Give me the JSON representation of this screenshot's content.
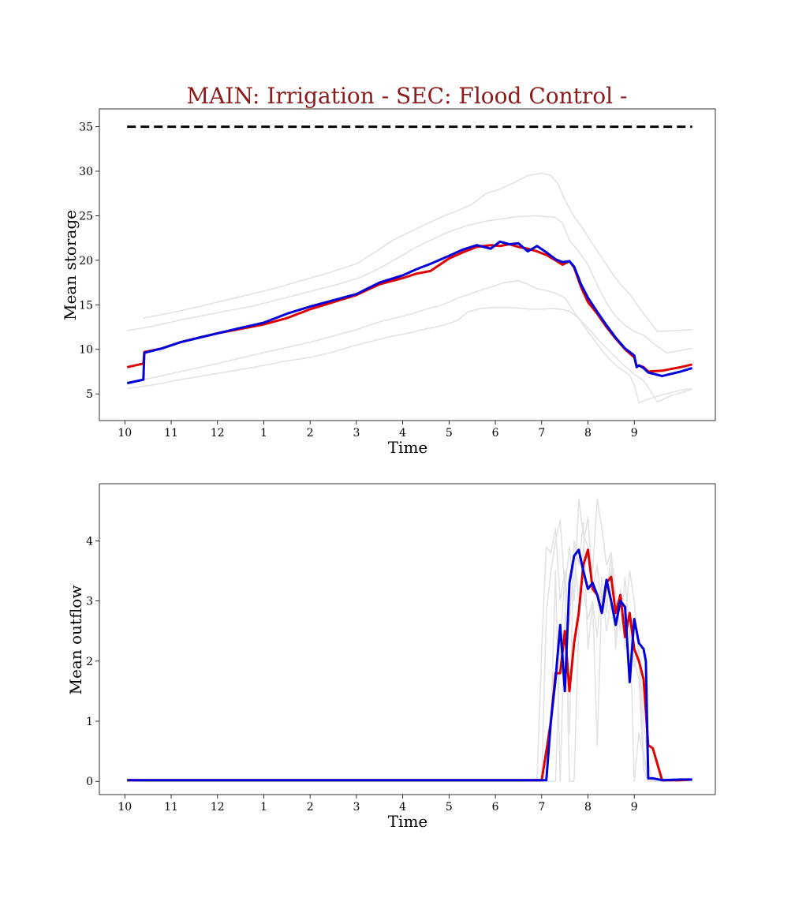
{
  "title": "MAIN: Irrigation - SEC: Flood Control -",
  "colors": {
    "title": "#8b1a1a",
    "policy_a": "#e00000",
    "policy_b": "#0000dd",
    "background_runs": "#e3e3e3",
    "capacity": "#000000"
  },
  "chart_data": [
    {
      "type": "line",
      "xlabel": "Time",
      "ylabel": "Mean storage",
      "x_ticks": [
        {
          "t": 0,
          "label": "10"
        },
        {
          "t": 1,
          "label": "11"
        },
        {
          "t": 2,
          "label": "12"
        },
        {
          "t": 3,
          "label": "1"
        },
        {
          "t": 4,
          "label": "2"
        },
        {
          "t": 5,
          "label": "3"
        },
        {
          "t": 6,
          "label": "4"
        },
        {
          "t": 7,
          "label": "5"
        },
        {
          "t": 8,
          "label": "6"
        },
        {
          "t": 9,
          "label": "7"
        },
        {
          "t": 10,
          "label": "8"
        },
        {
          "t": 11,
          "label": "9"
        }
      ],
      "xlim": [
        -0.55,
        12.75
      ],
      "ylim": [
        2,
        37
      ],
      "y_ticks": [
        5,
        10,
        15,
        20,
        25,
        30,
        35
      ],
      "grid": false,
      "capacity_line": {
        "y": 35,
        "x": [
          0.05,
          12.25
        ],
        "style": "dashed"
      },
      "background_series": [
        {
          "x": [
            0.05,
            0.6,
            1.2,
            2.0,
            2.8,
            3.4,
            4.0,
            4.6,
            5.1,
            5.5,
            5.9,
            6.3,
            6.7,
            7.0,
            7.4,
            7.8,
            8.2,
            8.5,
            8.9,
            9.1,
            9.3,
            9.45,
            9.6,
            9.8,
            10.0,
            10.2,
            10.4,
            10.6,
            10.8,
            11.0,
            11.2,
            11.4,
            11.7,
            12.25
          ],
          "y": [
            12.1,
            12.6,
            13.3,
            14.1,
            14.9,
            15.7,
            16.5,
            17.3,
            18.1,
            19.1,
            20.3,
            21.5,
            22.5,
            23.2,
            23.9,
            24.4,
            24.7,
            24.9,
            25.0,
            24.9,
            24.8,
            24.2,
            22.2,
            21.0,
            19.5,
            17.2,
            15.2,
            13.7,
            12.7,
            12.0,
            11.6,
            10.7,
            9.6,
            10.1
          ]
        },
        {
          "x": [
            0.4,
            1.0,
            1.6,
            2.4,
            3.2,
            3.8,
            4.4,
            5.0,
            5.4,
            5.8,
            6.2,
            6.6,
            6.9,
            7.2,
            7.5,
            7.8,
            8.1,
            8.4,
            8.7,
            9.0,
            9.2,
            9.35,
            9.5,
            9.7,
            9.9,
            10.1,
            10.3,
            10.5,
            10.7,
            10.9,
            11.2,
            11.5,
            11.9,
            12.25
          ],
          "y": [
            13.5,
            14.1,
            14.8,
            15.8,
            16.8,
            17.7,
            18.6,
            19.6,
            20.9,
            22.3,
            23.3,
            24.3,
            25.0,
            25.6,
            26.3,
            27.5,
            28.0,
            28.7,
            29.5,
            29.8,
            29.5,
            28.6,
            26.8,
            24.9,
            23.5,
            21.8,
            20.3,
            18.7,
            17.3,
            16.2,
            14.0,
            12.0,
            12.1,
            12.2
          ]
        },
        {
          "x": [
            0.05,
            0.6,
            1.2,
            2.0,
            2.8,
            3.4,
            4.0,
            4.5,
            5.0,
            5.5,
            5.9,
            6.2,
            6.5,
            6.8,
            7.0,
            7.2,
            7.4,
            7.6,
            7.9,
            8.2,
            8.5,
            8.7,
            8.9,
            9.1,
            9.3,
            9.5,
            9.7,
            9.9,
            10.1,
            10.3,
            10.5,
            10.7,
            10.9,
            11.0,
            11.1,
            11.3,
            11.6,
            12.0,
            12.25
          ],
          "y": [
            6.3,
            6.8,
            7.5,
            8.4,
            9.4,
            10.1,
            10.8,
            11.5,
            12.2,
            13.1,
            13.6,
            14.0,
            14.5,
            14.9,
            15.3,
            15.8,
            16.1,
            16.5,
            17.0,
            17.5,
            17.7,
            17.3,
            16.8,
            16.6,
            16.3,
            15.8,
            14.2,
            12.7,
            11.3,
            9.9,
            8.7,
            7.8,
            7.1,
            6.0,
            4.0,
            4.4,
            4.9,
            5.4,
            5.6
          ]
        },
        {
          "x": [
            0.05,
            0.6,
            1.2,
            2.0,
            2.8,
            3.4,
            4.0,
            4.5,
            5.0,
            5.4,
            5.8,
            6.2,
            6.5,
            6.8,
            7.0,
            7.2,
            7.4,
            7.7,
            8.0,
            8.3,
            8.6,
            8.8,
            9.0,
            9.2,
            9.4,
            9.6,
            9.8,
            10.0,
            10.2,
            10.4,
            10.6,
            10.8,
            11.0,
            11.2,
            11.5,
            11.8,
            12.25
          ],
          "y": [
            5.6,
            6.0,
            6.6,
            7.3,
            8.0,
            8.6,
            9.1,
            9.7,
            10.5,
            11.0,
            11.5,
            11.9,
            12.3,
            12.6,
            12.9,
            13.3,
            14.2,
            14.6,
            14.7,
            14.7,
            14.6,
            14.5,
            14.5,
            14.6,
            14.5,
            14.3,
            13.5,
            12.4,
            11.2,
            10.1,
            9.1,
            8.1,
            7.2,
            6.5,
            4.1,
            4.8,
            5.5
          ]
        }
      ],
      "series": [
        {
          "x": [
            0.05,
            0.4,
            0.42,
            0.8,
            1.2,
            1.6,
            2.0,
            2.5,
            3.0,
            3.5,
            4.0,
            4.5,
            5.0,
            5.5,
            6.0,
            6.3,
            6.6,
            7.0,
            7.3,
            7.6,
            7.9,
            8.1,
            8.3,
            8.5,
            8.7,
            8.9,
            9.1,
            9.3,
            9.45,
            9.6,
            9.7,
            9.85,
            10.0,
            10.2,
            10.4,
            10.6,
            10.8,
            11.0,
            11.05,
            11.1,
            11.2,
            11.3,
            11.6,
            12.0,
            12.25
          ],
          "y": [
            8.0,
            8.4,
            9.7,
            10.1,
            10.8,
            11.3,
            11.8,
            12.3,
            12.8,
            13.5,
            14.5,
            15.3,
            16.1,
            17.3,
            18.0,
            18.5,
            18.8,
            20.2,
            20.9,
            21.5,
            21.7,
            21.6,
            21.8,
            21.5,
            21.3,
            21.0,
            20.6,
            20.0,
            19.5,
            19.9,
            19.2,
            17.0,
            15.3,
            14.0,
            12.5,
            11.2,
            10.0,
            9.1,
            8.1,
            8.2,
            8.0,
            7.5,
            7.6,
            8.0,
            8.3
          ]
        },
        {
          "x": [
            0.05,
            0.4,
            0.42,
            0.8,
            1.2,
            1.6,
            2.0,
            2.5,
            3.0,
            3.5,
            4.0,
            4.5,
            5.0,
            5.5,
            6.0,
            6.3,
            6.6,
            7.0,
            7.3,
            7.6,
            7.9,
            8.1,
            8.3,
            8.5,
            8.7,
            8.9,
            9.1,
            9.3,
            9.45,
            9.6,
            9.7,
            9.85,
            10.0,
            10.2,
            10.4,
            10.6,
            10.8,
            11.0,
            11.05,
            11.1,
            11.2,
            11.3,
            11.6,
            12.0,
            12.25
          ],
          "y": [
            6.2,
            6.6,
            9.6,
            10.1,
            10.8,
            11.3,
            11.8,
            12.4,
            13.0,
            14.0,
            14.8,
            15.5,
            16.2,
            17.5,
            18.3,
            19.0,
            19.6,
            20.5,
            21.2,
            21.7,
            21.3,
            22.1,
            21.8,
            21.9,
            21.0,
            21.6,
            20.9,
            20.1,
            19.8,
            19.9,
            19.3,
            17.3,
            15.8,
            14.2,
            12.7,
            11.3,
            10.1,
            9.3,
            8.0,
            8.2,
            7.9,
            7.4,
            7.0,
            7.5,
            7.9
          ]
        }
      ]
    },
    {
      "type": "line",
      "xlabel": "Time",
      "ylabel": "Mean outflow",
      "x_ticks": [
        {
          "t": 0,
          "label": "10"
        },
        {
          "t": 1,
          "label": "11"
        },
        {
          "t": 2,
          "label": "12"
        },
        {
          "t": 3,
          "label": "1"
        },
        {
          "t": 4,
          "label": "2"
        },
        {
          "t": 5,
          "label": "3"
        },
        {
          "t": 6,
          "label": "4"
        },
        {
          "t": 7,
          "label": "5"
        },
        {
          "t": 8,
          "label": "6"
        },
        {
          "t": 9,
          "label": "7"
        },
        {
          "t": 10,
          "label": "8"
        },
        {
          "t": 11,
          "label": "9"
        }
      ],
      "xlim": [
        -0.55,
        12.75
      ],
      "ylim": [
        -0.22,
        4.95
      ],
      "y_ticks": [
        0,
        1,
        2,
        3,
        4
      ],
      "grid": false,
      "background_series": [
        {
          "x": [
            0.05,
            8.9,
            9.0,
            9.1,
            9.2,
            9.3,
            9.4,
            9.5,
            9.6,
            9.7,
            9.8,
            9.9,
            10.0,
            10.1,
            10.2,
            10.3,
            10.4,
            10.5,
            10.6,
            10.7,
            10.8,
            10.9,
            11.0,
            11.1,
            11.2,
            11.3,
            11.4,
            12.25
          ],
          "y": [
            0,
            0,
            2.2,
            3.9,
            3.8,
            4.2,
            3.0,
            3.5,
            2.6,
            3.8,
            3.0,
            3.2,
            2.7,
            3.0,
            2.4,
            3.4,
            2.8,
            3.5,
            2.7,
            3.0,
            2.5,
            2.6,
            1.9,
            2.2,
            1.0,
            0.3,
            0,
            0
          ]
        },
        {
          "x": [
            0.05,
            9.0,
            9.1,
            9.2,
            9.3,
            9.4,
            9.5,
            9.6,
            9.7,
            9.8,
            9.9,
            10.0,
            10.1,
            10.2,
            10.3,
            10.4,
            10.5,
            10.6,
            10.7,
            10.8,
            10.9,
            11.0,
            11.1,
            11.2,
            11.3,
            12.25
          ],
          "y": [
            0,
            0,
            2.8,
            3.5,
            4.0,
            4.35,
            3.2,
            3.9,
            3.0,
            4.7,
            4.1,
            3.9,
            3.5,
            4.7,
            4.2,
            3.6,
            3.8,
            3.1,
            2.5,
            3.4,
            2.4,
            2.0,
            1.7,
            0.2,
            0,
            0
          ]
        },
        {
          "x": [
            0.05,
            9.1,
            9.2,
            9.3,
            9.4,
            9.5,
            9.6,
            9.7,
            9.8,
            9.9,
            10.0,
            10.1,
            10.2,
            10.3,
            10.4,
            10.5,
            10.6,
            10.7,
            10.8,
            10.9,
            11.0,
            11.1,
            11.2,
            11.3,
            11.4,
            12.25
          ],
          "y": [
            0,
            0,
            1.0,
            3.5,
            0,
            2.8,
            0.8,
            4.0,
            3.6,
            4.3,
            2.2,
            3.0,
            0.6,
            3.2,
            2.5,
            3.0,
            2.4,
            3.1,
            2.2,
            2.8,
            0,
            0.8,
            0.4,
            0,
            0,
            0
          ]
        },
        {
          "x": [
            0.05,
            9.3,
            9.4,
            9.5,
            9.6,
            9.7,
            9.8,
            9.9,
            10.0,
            10.1,
            10.2,
            10.3,
            10.4,
            10.5,
            10.6,
            10.7,
            10.8,
            10.9,
            11.0,
            11.1,
            11.2,
            11.3,
            11.4,
            12.25
          ],
          "y": [
            0,
            0,
            2.3,
            3.4,
            0,
            0,
            2.6,
            3.9,
            4.4,
            3.2,
            3.6,
            2.8,
            3.0,
            3.8,
            2.2,
            3.2,
            2.6,
            3.5,
            3.0,
            2.0,
            0.5,
            0,
            0,
            0
          ]
        }
      ],
      "series": [
        {
          "x": [
            0.05,
            9.0,
            9.1,
            9.2,
            9.3,
            9.4,
            9.5,
            9.6,
            9.7,
            9.8,
            9.9,
            10.0,
            10.1,
            10.2,
            10.3,
            10.4,
            10.5,
            10.6,
            10.7,
            10.8,
            10.9,
            11.0,
            11.1,
            11.2,
            11.3,
            11.4,
            11.6,
            12.0,
            12.25
          ],
          "y": [
            0.02,
            0.02,
            0.5,
            1.0,
            1.8,
            1.8,
            2.5,
            1.5,
            2.3,
            2.8,
            3.6,
            3.85,
            3.2,
            3.1,
            2.8,
            3.3,
            3.4,
            2.8,
            3.1,
            2.4,
            2.8,
            2.2,
            2.0,
            1.7,
            0.6,
            0.55,
            0.02,
            0.02,
            0.03
          ]
        },
        {
          "x": [
            0.05,
            9.1,
            9.2,
            9.3,
            9.4,
            9.5,
            9.6,
            9.7,
            9.8,
            9.9,
            10.0,
            10.1,
            10.2,
            10.3,
            10.4,
            10.5,
            10.6,
            10.7,
            10.8,
            10.9,
            11.0,
            11.1,
            11.2,
            11.25,
            11.3,
            11.4,
            11.6,
            12.0,
            12.25
          ],
          "y": [
            0.02,
            0.02,
            1.0,
            1.7,
            2.6,
            1.5,
            3.3,
            3.75,
            3.85,
            3.5,
            3.2,
            3.3,
            3.1,
            2.8,
            3.35,
            3.0,
            2.6,
            3.0,
            2.9,
            1.65,
            2.7,
            2.3,
            2.2,
            2.0,
            0.05,
            0.05,
            0.02,
            0.03,
            0.03
          ]
        }
      ]
    }
  ]
}
